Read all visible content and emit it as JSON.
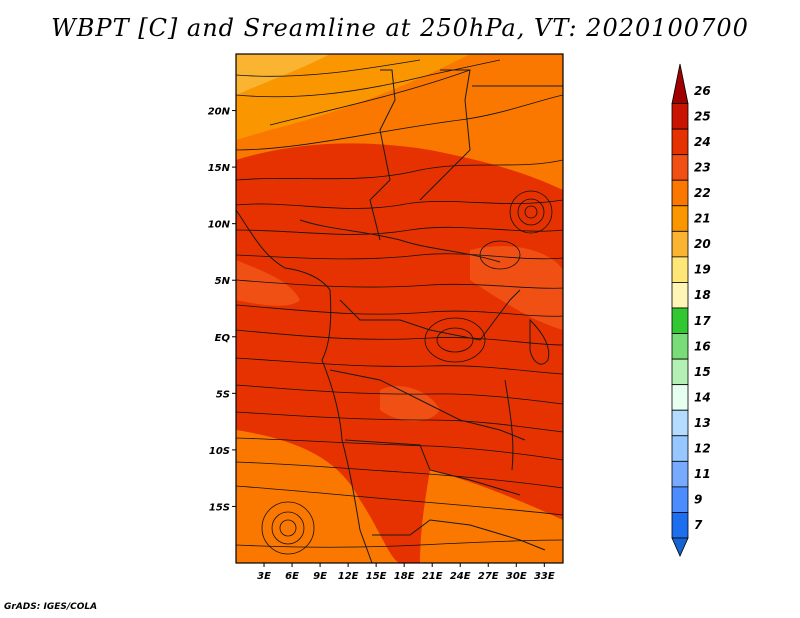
{
  "title": "WBPT [C] and Sreamline at 250hPa, VT: 2020100700",
  "credit": "GrADS: IGES/COLA",
  "map": {
    "lon_range": [
      0,
      35
    ],
    "lat_range": [
      -20,
      25
    ],
    "lat_ticks": [
      {
        "value": 20,
        "label": "20N"
      },
      {
        "value": 15,
        "label": "15N"
      },
      {
        "value": 10,
        "label": "10N"
      },
      {
        "value": 5,
        "label": "5N"
      },
      {
        "value": 0,
        "label": "EQ"
      },
      {
        "value": -5,
        "label": "5S"
      },
      {
        "value": -10,
        "label": "10S"
      },
      {
        "value": -15,
        "label": "15S"
      }
    ],
    "lon_ticks": [
      {
        "value": 3,
        "label": "3E"
      },
      {
        "value": 6,
        "label": "6E"
      },
      {
        "value": 9,
        "label": "9E"
      },
      {
        "value": 12,
        "label": "12E"
      },
      {
        "value": 15,
        "label": "15E"
      },
      {
        "value": 18,
        "label": "18E"
      },
      {
        "value": 21,
        "label": "21E"
      },
      {
        "value": 24,
        "label": "24E"
      },
      {
        "value": 27,
        "label": "27E"
      },
      {
        "value": 30,
        "label": "30E"
      },
      {
        "value": 33,
        "label": "33E"
      }
    ]
  },
  "colorbar": {
    "levels": [
      {
        "label": "26",
        "color": "#a00000"
      },
      {
        "label": "25",
        "color": "#c81400"
      },
      {
        "label": "24",
        "color": "#e63200"
      },
      {
        "label": "23",
        "color": "#f05014"
      },
      {
        "label": "22",
        "color": "#fa7800"
      },
      {
        "label": "21",
        "color": "#fa9600"
      },
      {
        "label": "20",
        "color": "#fab432"
      },
      {
        "label": "19",
        "color": "#ffe678"
      },
      {
        "label": "18",
        "color": "#fff5b4"
      },
      {
        "label": "17",
        "color": "#32c832"
      },
      {
        "label": "16",
        "color": "#78dc78"
      },
      {
        "label": "15",
        "color": "#b4f0b4"
      },
      {
        "label": "14",
        "color": "#e6fff0"
      },
      {
        "label": "13",
        "color": "#b4dcff"
      },
      {
        "label": "12",
        "color": "#96c8ff"
      },
      {
        "label": "11",
        "color": "#78aaff"
      },
      {
        "label": "9",
        "color": "#4b8cff"
      },
      {
        "label": "7",
        "color": "#1e6ef0"
      }
    ],
    "bottom_color": "#1464d2"
  }
}
